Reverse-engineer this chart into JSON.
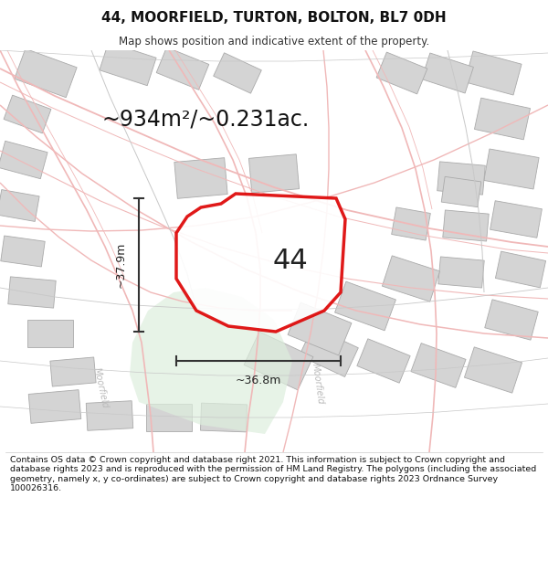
{
  "title": "44, MOORFIELD, TURTON, BOLTON, BL7 0DH",
  "subtitle": "Map shows position and indicative extent of the property.",
  "area_text": "~934m²/~0.231ac.",
  "width_label": "~36.8m",
  "height_label": "~37.9m",
  "number_label": "44",
  "footer": "Contains OS data © Crown copyright and database right 2021. This information is subject to Crown copyright and database rights 2023 and is reproduced with the permission of HM Land Registry. The polygons (including the associated geometry, namely x, y co-ordinates) are subject to Crown copyright and database rights 2023 Ordnance Survey 100026316.",
  "map_bg": "#f0f0f0",
  "plot_edge": "#dd0000",
  "pink": "#f0b8b8",
  "gray_road": "#c8c8c8",
  "bfill": "#d4d4d4",
  "bedge": "#aaaaaa",
  "green_fill": "#ddeedd",
  "dim_color": "#333333",
  "street_color": "#bbbbbb"
}
